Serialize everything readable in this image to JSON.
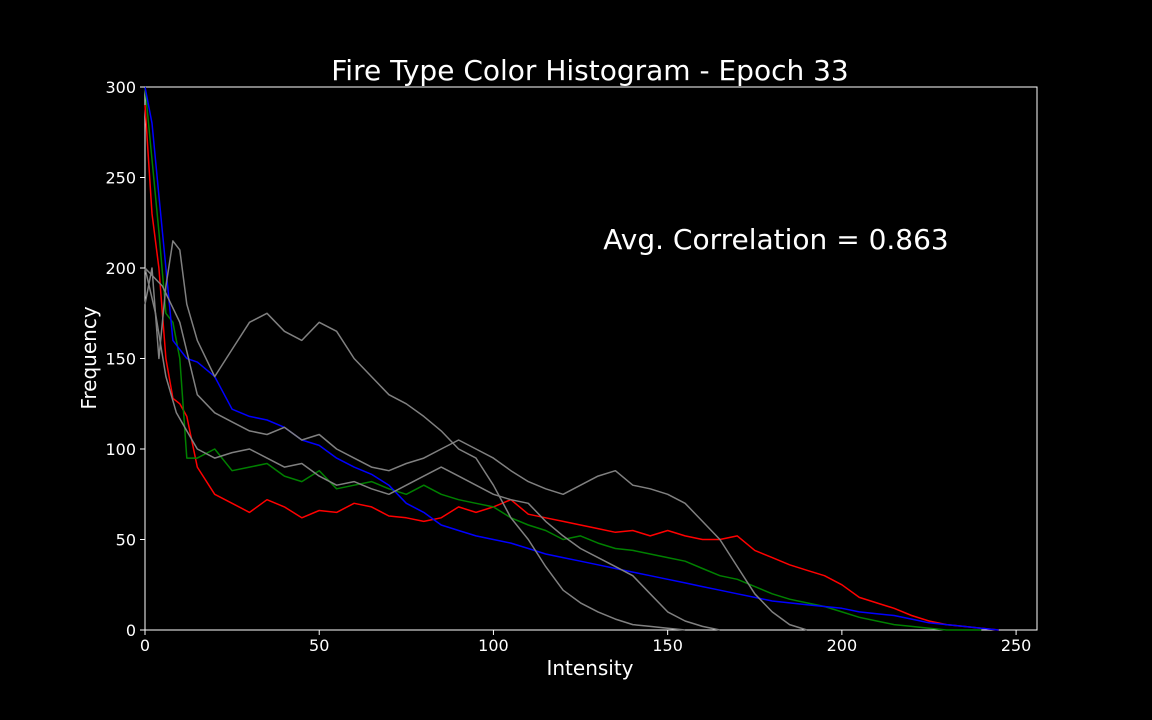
{
  "chart_data": {
    "type": "line",
    "title": "Fire Type Color Histogram - Epoch 33",
    "xlabel": "Intensity",
    "ylabel": "Frequency",
    "xlim": [
      0,
      256
    ],
    "ylim": [
      0,
      300
    ],
    "xticks": [
      "0",
      "50",
      "100",
      "150",
      "200",
      "250"
    ],
    "yticks": [
      "0",
      "50",
      "100",
      "150",
      "200",
      "250",
      "300"
    ],
    "grid": false,
    "legend": "none",
    "annotation": "Avg. Correlation = 0.863",
    "colors": {
      "background": "#000000",
      "foreground": "#ffffff",
      "red": "#ff0000",
      "green": "#008000",
      "blue": "#0000ff",
      "gray": "#808080"
    },
    "series": [
      {
        "color": "red",
        "x": [
          0,
          2,
          4,
          6,
          8,
          10,
          12,
          15,
          20,
          25,
          30,
          35,
          40,
          45,
          50,
          55,
          60,
          65,
          70,
          75,
          80,
          85,
          90,
          95,
          100,
          105,
          110,
          115,
          120,
          125,
          130,
          135,
          140,
          145,
          150,
          155,
          160,
          165,
          170,
          175,
          180,
          185,
          190,
          195,
          200,
          205,
          210,
          215,
          220,
          225,
          230,
          235,
          240,
          245
        ],
        "y": [
          290,
          230,
          200,
          150,
          128,
          125,
          118,
          90,
          75,
          70,
          65,
          72,
          68,
          62,
          66,
          65,
          70,
          68,
          63,
          62,
          60,
          62,
          68,
          65,
          68,
          72,
          64,
          62,
          60,
          58,
          56,
          54,
          55,
          52,
          55,
          52,
          50,
          50,
          52,
          44,
          40,
          36,
          33,
          30,
          25,
          18,
          15,
          12,
          8,
          5,
          3,
          2,
          1,
          0
        ]
      },
      {
        "color": "green",
        "x": [
          0,
          2,
          4,
          6,
          8,
          10,
          12,
          15,
          20,
          25,
          30,
          35,
          40,
          45,
          50,
          55,
          60,
          65,
          70,
          75,
          80,
          85,
          90,
          95,
          100,
          105,
          110,
          115,
          120,
          125,
          130,
          135,
          140,
          145,
          150,
          155,
          160,
          165,
          170,
          175,
          180,
          185,
          190,
          195,
          200,
          205,
          210,
          215,
          220,
          225,
          230,
          235,
          240
        ],
        "y": [
          300,
          260,
          220,
          175,
          170,
          150,
          95,
          95,
          100,
          88,
          90,
          92,
          85,
          82,
          88,
          78,
          80,
          82,
          78,
          75,
          80,
          75,
          72,
          70,
          68,
          62,
          58,
          55,
          50,
          52,
          48,
          45,
          44,
          42,
          40,
          38,
          34,
          30,
          28,
          24,
          20,
          17,
          15,
          13,
          10,
          7,
          5,
          3,
          2,
          1,
          0,
          0,
          0
        ]
      },
      {
        "color": "blue",
        "x": [
          0,
          2,
          4,
          6,
          8,
          10,
          12,
          15,
          20,
          25,
          30,
          35,
          40,
          45,
          50,
          55,
          60,
          65,
          70,
          75,
          80,
          85,
          90,
          95,
          100,
          105,
          110,
          115,
          120,
          125,
          130,
          135,
          140,
          145,
          150,
          155,
          160,
          165,
          170,
          175,
          180,
          185,
          190,
          195,
          200,
          205,
          210,
          215,
          220,
          225,
          230,
          235,
          240,
          245
        ],
        "y": [
          300,
          280,
          240,
          200,
          160,
          155,
          150,
          148,
          140,
          122,
          118,
          116,
          112,
          105,
          102,
          95,
          90,
          86,
          80,
          70,
          65,
          58,
          55,
          52,
          50,
          48,
          45,
          42,
          40,
          38,
          36,
          34,
          32,
          30,
          28,
          26,
          24,
          22,
          20,
          18,
          16,
          15,
          14,
          13,
          12,
          10,
          9,
          8,
          6,
          4,
          3,
          2,
          1,
          0
        ]
      },
      {
        "color": "gray",
        "x": [
          0,
          2,
          4,
          6,
          8,
          10,
          12,
          15,
          20,
          25,
          30,
          35,
          40,
          45,
          50,
          55,
          60,
          65,
          70,
          75,
          80,
          85,
          90,
          95,
          100,
          105,
          110,
          115,
          120,
          125,
          130,
          135,
          140,
          145,
          150,
          155
        ],
        "y": [
          180,
          200,
          150,
          190,
          215,
          210,
          180,
          160,
          140,
          155,
          170,
          175,
          165,
          160,
          170,
          165,
          150,
          140,
          130,
          125,
          118,
          110,
          100,
          95,
          80,
          62,
          50,
          35,
          22,
          15,
          10,
          6,
          3,
          2,
          1,
          0
        ]
      },
      {
        "color": "gray",
        "x": [
          0,
          5,
          10,
          15,
          20,
          25,
          30,
          35,
          40,
          45,
          50,
          55,
          60,
          65,
          70,
          75,
          80,
          85,
          90,
          95,
          100,
          105,
          110,
          115,
          120,
          125,
          130,
          135,
          140,
          145,
          150,
          155,
          160,
          165,
          170,
          175,
          180,
          185,
          190
        ],
        "y": [
          200,
          190,
          170,
          130,
          120,
          115,
          110,
          108,
          112,
          105,
          108,
          100,
          95,
          90,
          88,
          92,
          95,
          100,
          105,
          100,
          95,
          88,
          82,
          78,
          75,
          80,
          85,
          88,
          80,
          78,
          75,
          70,
          60,
          50,
          35,
          20,
          10,
          3,
          0
        ]
      },
      {
        "color": "gray",
        "x": [
          0,
          3,
          6,
          9,
          12,
          15,
          20,
          25,
          30,
          35,
          40,
          45,
          50,
          55,
          60,
          65,
          70,
          75,
          80,
          85,
          90,
          95,
          100,
          105,
          110,
          115,
          120,
          125,
          130,
          135,
          140,
          145,
          150,
          155,
          160,
          165
        ],
        "y": [
          200,
          175,
          140,
          120,
          110,
          100,
          95,
          98,
          100,
          95,
          90,
          92,
          85,
          80,
          82,
          78,
          75,
          80,
          85,
          90,
          85,
          80,
          75,
          72,
          70,
          60,
          52,
          45,
          40,
          35,
          30,
          20,
          10,
          5,
          2,
          0
        ]
      }
    ]
  }
}
